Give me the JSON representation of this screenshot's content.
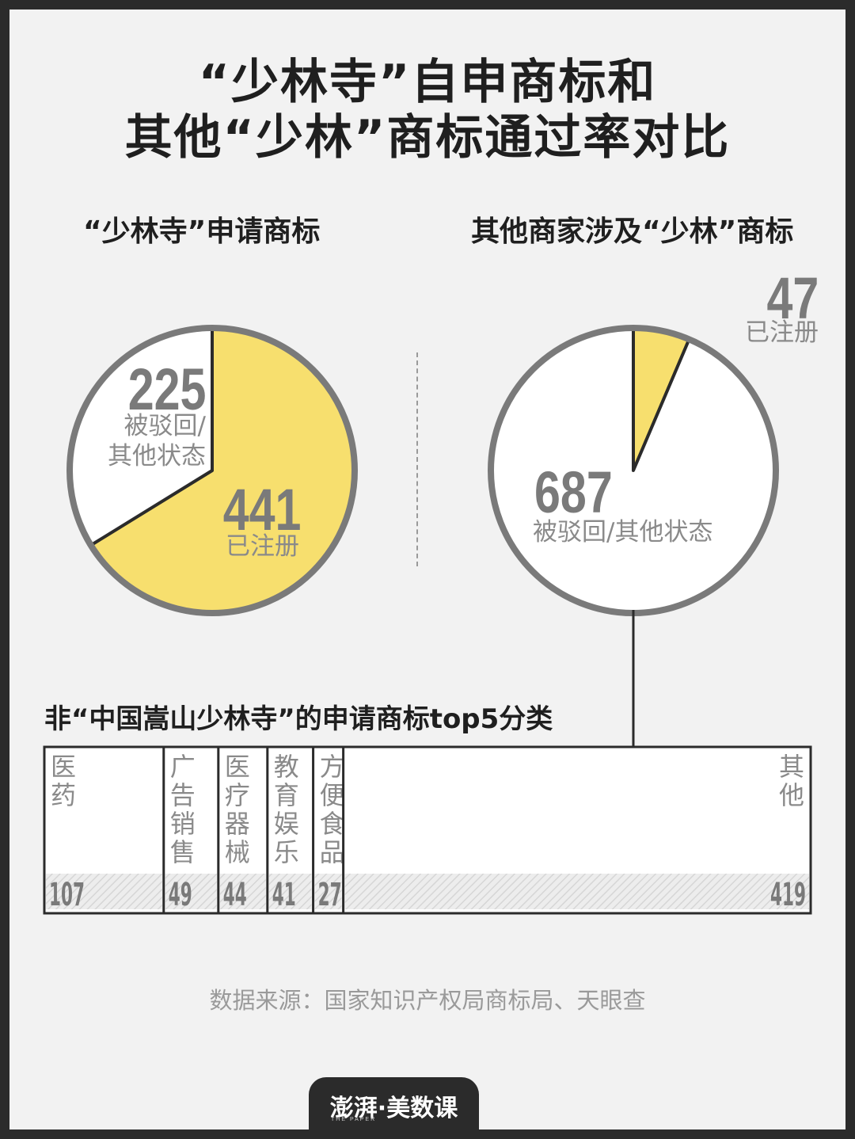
{
  "title": {
    "line1": "“少林寺”自申商标和",
    "line2": "其他“少林”商标通过率对比"
  },
  "chart_data": [
    {
      "type": "pie",
      "title": "“少林寺”申请商标",
      "slices": [
        {
          "name": "已注册",
          "value": 441,
          "color": "#f7df6e"
        },
        {
          "name": "被驳回/其他状态",
          "value": 225,
          "color": "#ffffff"
        }
      ],
      "labels": {
        "registered_value": "441",
        "registered_label": "已注册",
        "other_value": "225",
        "other_label_1": "被驳回/",
        "other_label_2": "其他状态"
      }
    },
    {
      "type": "pie",
      "title": "其他商家涉及“少林”商标",
      "slices": [
        {
          "name": "已注册",
          "value": 47,
          "color": "#f7df6e"
        },
        {
          "name": "被驳回/其他状态",
          "value": 687,
          "color": "#ffffff"
        }
      ],
      "labels": {
        "registered_value": "47",
        "registered_label": "已注册",
        "other_value": "687",
        "other_label": "被驳回/其他状态"
      }
    },
    {
      "type": "bar",
      "title": "非“中国嵩山少林寺”的申请商标top5分类",
      "categories": [
        "医药",
        "广告销售",
        "医疗器械",
        "教育娱乐",
        "方便食品",
        "其他"
      ],
      "values": [
        107,
        49,
        44,
        41,
        27,
        419
      ],
      "label_lines": [
        [
          "医",
          "药"
        ],
        [
          "广",
          "告",
          "销",
          "售"
        ],
        [
          "医",
          "疗",
          "器",
          "械"
        ],
        [
          "教",
          "育",
          "娱",
          "乐"
        ],
        [
          "方",
          "便",
          "食",
          "品"
        ],
        [
          "其",
          "他"
        ]
      ]
    }
  ],
  "source": "数据来源：国家知识产权局商标局、天眼查",
  "logo": {
    "text": "澎湃·美数课",
    "sub": "THE PAPER"
  },
  "colors": {
    "yellow": "#f7df6e",
    "ring": "#7a7a7a",
    "text_gray": "#8a8a8a",
    "dark": "#1f1f1f"
  }
}
